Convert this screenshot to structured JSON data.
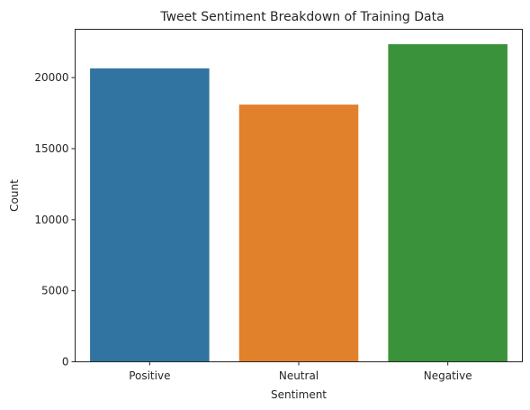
{
  "chart_data": {
    "type": "bar",
    "title": "Tweet Sentiment Breakdown of Training Data",
    "xlabel": "Sentiment",
    "ylabel": "Count",
    "categories": [
      "Positive",
      "Neutral",
      "Negative"
    ],
    "values": [
      20650,
      18100,
      22350
    ],
    "colors": [
      "#3274a1",
      "#e1812c",
      "#3a923a"
    ],
    "ylim": [
      0,
      23400
    ],
    "yticks": [
      0,
      5000,
      10000,
      15000,
      20000
    ],
    "grid": false,
    "legend": "none"
  }
}
